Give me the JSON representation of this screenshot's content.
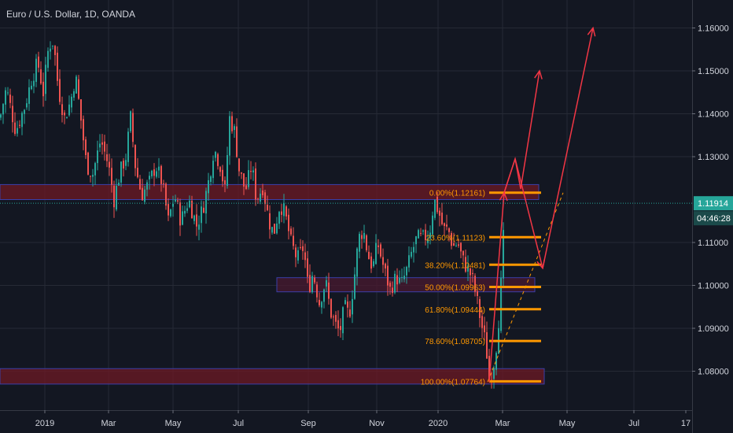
{
  "chart_data": {
    "type": "candlestick",
    "title": "Euro / U.S. Dollar, 1D, OANDA",
    "y_range": [
      1.0715,
      1.1685
    ],
    "y_ticks": [
      {
        "value": 1.16,
        "label": "1.16000"
      },
      {
        "value": 1.15,
        "label": "1.15000"
      },
      {
        "value": 1.14,
        "label": "1.14000"
      },
      {
        "value": 1.13,
        "label": "1.13000"
      },
      {
        "value": 1.11,
        "label": "1.11000"
      },
      {
        "value": 1.1,
        "label": "1.10000"
      },
      {
        "value": 1.09,
        "label": "1.09000"
      },
      {
        "value": 1.08,
        "label": "1.08000"
      }
    ],
    "x_ticks": [
      "2019",
      "Mar",
      "May",
      "Jul",
      "Sep",
      "Nov",
      "2020",
      "Mar",
      "May",
      "Jul",
      "17"
    ],
    "last_price": {
      "label": "1.11914",
      "value": 1.11914,
      "color": "#26a69a"
    },
    "countdown": "04:46:28",
    "colors": {
      "up": "#26a69a",
      "down": "#ef5350",
      "fib": "#ff9800",
      "arrow": "#f23645",
      "zone": "#8a1c26"
    },
    "price_path": [
      [
        0,
        1.139
      ],
      [
        8,
        1.146
      ],
      [
        20,
        1.136
      ],
      [
        32,
        1.142
      ],
      [
        40,
        1.148
      ],
      [
        48,
        1.152
      ],
      [
        55,
        1.145
      ],
      [
        62,
        1.156
      ],
      [
        68,
        1.157
      ],
      [
        74,
        1.146
      ],
      [
        82,
        1.139
      ],
      [
        90,
        1.143
      ],
      [
        96,
        1.149
      ],
      [
        102,
        1.14
      ],
      [
        110,
        1.128
      ],
      [
        118,
        1.126
      ],
      [
        128,
        1.134
      ],
      [
        138,
        1.128
      ],
      [
        145,
        1.12
      ],
      [
        152,
        1.126
      ],
      [
        160,
        1.13
      ],
      [
        166,
        1.139
      ],
      [
        172,
        1.128
      ],
      [
        180,
        1.121
      ],
      [
        190,
        1.124
      ],
      [
        198,
        1.128
      ],
      [
        206,
        1.124
      ],
      [
        214,
        1.115
      ],
      [
        222,
        1.121
      ],
      [
        230,
        1.115
      ],
      [
        240,
        1.12
      ],
      [
        250,
        1.114
      ],
      [
        258,
        1.118
      ],
      [
        266,
        1.125
      ],
      [
        272,
        1.132
      ],
      [
        280,
        1.128
      ],
      [
        286,
        1.122
      ],
      [
        292,
        1.139
      ],
      [
        298,
        1.136
      ],
      [
        304,
        1.127
      ],
      [
        312,
        1.122
      ],
      [
        320,
        1.128
      ],
      [
        326,
        1.12
      ],
      [
        334,
        1.123
      ],
      [
        342,
        1.115
      ],
      [
        348,
        1.112
      ],
      [
        356,
        1.119
      ],
      [
        362,
        1.117
      ],
      [
        370,
        1.11
      ],
      [
        378,
        1.106
      ],
      [
        386,
        1.109
      ],
      [
        392,
        1.099
      ],
      [
        398,
        1.103
      ],
      [
        406,
        1.096
      ],
      [
        414,
        1.101
      ],
      [
        420,
        1.094
      ],
      [
        426,
        1.091
      ],
      [
        432,
        1.089
      ],
      [
        438,
        1.095
      ],
      [
        444,
        1.093
      ],
      [
        450,
        1.101
      ],
      [
        456,
        1.111
      ],
      [
        462,
        1.113
      ],
      [
        468,
        1.107
      ],
      [
        474,
        1.104
      ],
      [
        480,
        1.11
      ],
      [
        488,
        1.104
      ],
      [
        496,
        1.099
      ],
      [
        504,
        1.102
      ],
      [
        510,
        1.1
      ],
      [
        518,
        1.104
      ],
      [
        524,
        1.108
      ],
      [
        530,
        1.111
      ],
      [
        538,
        1.111
      ],
      [
        546,
        1.112
      ],
      [
        552,
        1.12
      ],
      [
        558,
        1.117
      ],
      [
        564,
        1.113
      ],
      [
        570,
        1.113
      ],
      [
        576,
        1.109
      ],
      [
        582,
        1.11
      ],
      [
        588,
        1.106
      ],
      [
        594,
        1.104
      ],
      [
        600,
        1.102
      ],
      [
        606,
        1.097
      ],
      [
        612,
        1.091
      ],
      [
        618,
        1.086
      ],
      [
        622,
        1.078
      ],
      [
        626,
        1.08
      ],
      [
        630,
        1.084
      ],
      [
        634,
        1.092
      ],
      [
        638,
        1.103
      ],
      [
        642,
        1.119
      ]
    ],
    "zones": [
      {
        "y_top": 1.1235,
        "y_bottom": 1.12,
        "x0": 0,
        "x1": 685,
        "fill": "#6d1a24"
      },
      {
        "y_top": 1.1018,
        "y_bottom": 1.0985,
        "x0": 352,
        "x1": 680,
        "fill": "#4a1a30"
      },
      {
        "y_top": 1.0806,
        "y_bottom": 1.077,
        "x0": 0,
        "x1": 692,
        "fill": "#6d1a24"
      }
    ],
    "fib_levels": [
      {
        "label": "0.00%(1.12161)",
        "value": 1.12161
      },
      {
        "label": "23.60%(1.11123)",
        "value": 1.11123
      },
      {
        "label": "38.20%(1.10481)",
        "value": 1.10481
      },
      {
        "label": "50.00%(1.09963)",
        "value": 1.09963
      },
      {
        "label": "61.80%(1.09444)",
        "value": 1.09444
      },
      {
        "label": "78.60%(1.08705)",
        "value": 1.08705
      },
      {
        "label": "100.00%(1.07764)",
        "value": 1.07764
      }
    ],
    "arrows": [
      {
        "pts": [
          [
            622,
            1.0775
          ],
          [
            641,
            1.1216
          ]
        ]
      },
      {
        "pts": [
          [
            641,
            1.1216
          ],
          [
            655,
            1.1295
          ],
          [
            662,
            1.1225
          ],
          [
            686,
            1.15
          ]
        ]
      },
      {
        "pts": [
          [
            641,
            1.1216
          ],
          [
            655,
            1.1295
          ],
          [
            690,
            1.104
          ]
        ]
      },
      {
        "pts": [
          [
            690,
            1.104
          ],
          [
            754,
            1.16
          ]
        ]
      }
    ],
    "dashed_trend": [
      [
        620,
        1.0775
      ],
      [
        716,
        1.1216
      ]
    ]
  }
}
